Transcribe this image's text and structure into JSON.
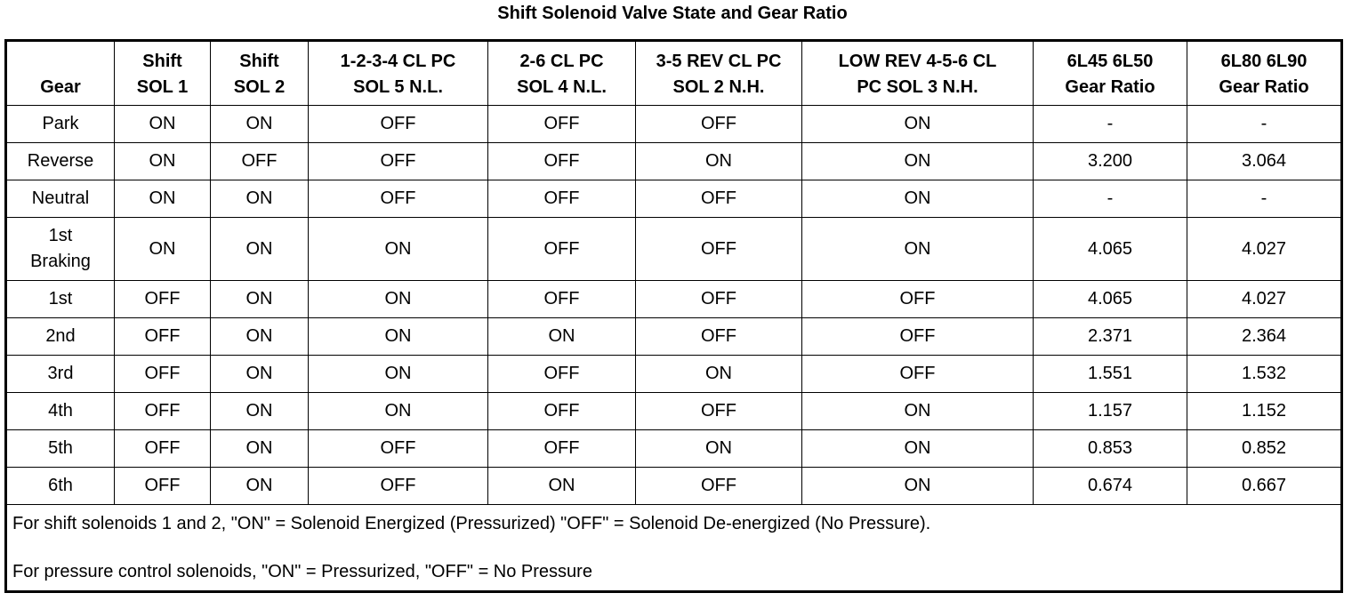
{
  "title": "Shift Solenoid Valve State and Gear Ratio",
  "headers": [
    [
      "Gear"
    ],
    [
      "Shift",
      "SOL 1"
    ],
    [
      "Shift",
      "SOL 2"
    ],
    [
      "1-2-3-4 CL PC",
      "SOL 5 N.L."
    ],
    [
      "2-6 CL PC",
      "SOL 4 N.L."
    ],
    [
      "3-5 REV CL PC",
      "SOL 2 N.H."
    ],
    [
      "LOW REV 4-5-6 CL",
      "PC SOL 3 N.H."
    ],
    [
      "6L45 6L50",
      "Gear Ratio"
    ],
    [
      "6L80 6L90",
      "Gear Ratio"
    ]
  ],
  "rows": [
    [
      [
        "Park"
      ],
      "ON",
      "ON",
      "OFF",
      "OFF",
      "OFF",
      "ON",
      "-",
      "-"
    ],
    [
      [
        "Reverse"
      ],
      "ON",
      "OFF",
      "OFF",
      "OFF",
      "ON",
      "ON",
      "3.200",
      "3.064"
    ],
    [
      [
        "Neutral"
      ],
      "ON",
      "ON",
      "OFF",
      "OFF",
      "OFF",
      "ON",
      "-",
      "-"
    ],
    [
      [
        "1st",
        "Braking"
      ],
      "ON",
      "ON",
      "ON",
      "OFF",
      "OFF",
      "ON",
      "4.065",
      "4.027"
    ],
    [
      [
        "1st"
      ],
      "OFF",
      "ON",
      "ON",
      "OFF",
      "OFF",
      "OFF",
      "4.065",
      "4.027"
    ],
    [
      [
        "2nd"
      ],
      "OFF",
      "ON",
      "ON",
      "ON",
      "OFF",
      "OFF",
      "2.371",
      "2.364"
    ],
    [
      [
        "3rd"
      ],
      "OFF",
      "ON",
      "ON",
      "OFF",
      "ON",
      "OFF",
      "1.551",
      "1.532"
    ],
    [
      [
        "4th"
      ],
      "OFF",
      "ON",
      "ON",
      "OFF",
      "OFF",
      "ON",
      "1.157",
      "1.152"
    ],
    [
      [
        "5th"
      ],
      "OFF",
      "ON",
      "OFF",
      "OFF",
      "ON",
      "ON",
      "0.853",
      "0.852"
    ],
    [
      [
        "6th"
      ],
      "OFF",
      "ON",
      "OFF",
      "ON",
      "OFF",
      "ON",
      "0.674",
      "0.667"
    ]
  ],
  "notes": [
    "For shift solenoids 1 and 2, \"ON\" = Solenoid Energized (Pressurized) \"OFF\" = Solenoid De-energized (No Pressure).",
    "For pressure control solenoids, \"ON\" = Pressurized, \"OFF\" = No Pressure"
  ]
}
